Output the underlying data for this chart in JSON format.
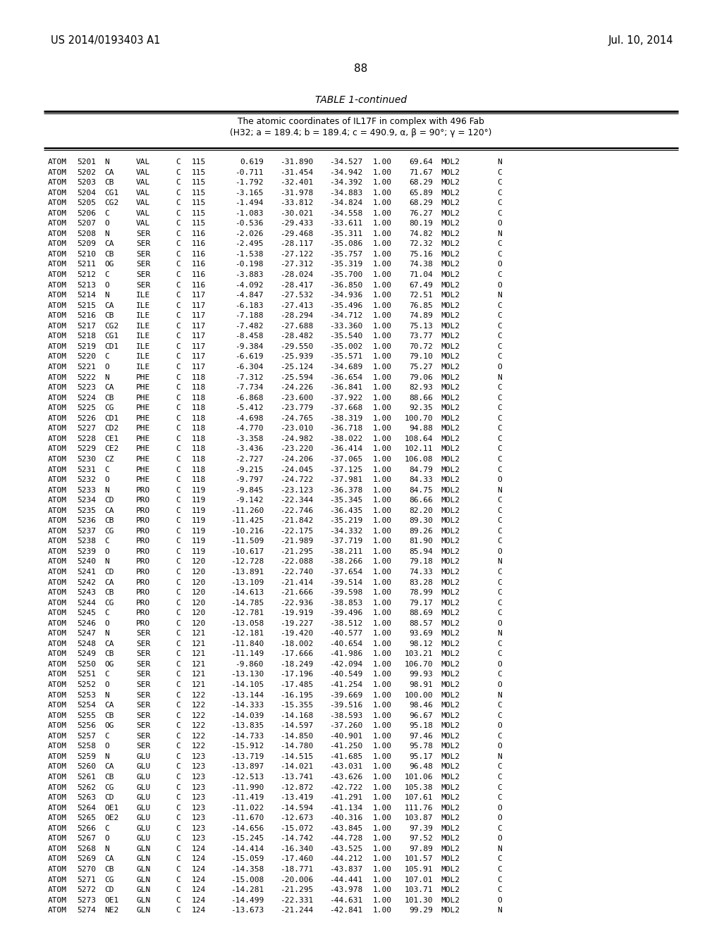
{
  "header_left": "US 2014/0193403 A1",
  "header_right": "Jul. 10, 2014",
  "page_number": "88",
  "table_title": "TABLE 1-continued",
  "table_subtitle1": "The atomic coordinates of IL17F in complex with 496 Fab",
  "table_subtitle2": "(H32; a = 189.4; b = 189.4; c = 490.9, α, β = 90°; γ = 120°)",
  "bg_color": "#ffffff",
  "text_color": "#000000",
  "rows": [
    [
      "ATOM",
      "5201",
      "N",
      "VAL",
      "C",
      "115",
      "0.619",
      "-31.890",
      "-34.527",
      "1.00",
      "69.64",
      "MOL2",
      "N"
    ],
    [
      "ATOM",
      "5202",
      "CA",
      "VAL",
      "C",
      "115",
      "-0.711",
      "-31.454",
      "-34.942",
      "1.00",
      "71.67",
      "MOL2",
      "C"
    ],
    [
      "ATOM",
      "5203",
      "CB",
      "VAL",
      "C",
      "115",
      "-1.792",
      "-32.401",
      "-34.392",
      "1.00",
      "68.29",
      "MOL2",
      "C"
    ],
    [
      "ATOM",
      "5204",
      "CG1",
      "VAL",
      "C",
      "115",
      "-3.165",
      "-31.978",
      "-34.883",
      "1.00",
      "65.89",
      "MOL2",
      "C"
    ],
    [
      "ATOM",
      "5205",
      "CG2",
      "VAL",
      "C",
      "115",
      "-1.494",
      "-33.812",
      "-34.824",
      "1.00",
      "68.29",
      "MOL2",
      "C"
    ],
    [
      "ATOM",
      "5206",
      "C",
      "VAL",
      "C",
      "115",
      "-1.083",
      "-30.021",
      "-34.558",
      "1.00",
      "76.27",
      "MOL2",
      "C"
    ],
    [
      "ATOM",
      "5207",
      "O",
      "VAL",
      "C",
      "115",
      "-0.536",
      "-29.433",
      "-33.611",
      "1.00",
      "80.19",
      "MOL2",
      "O"
    ],
    [
      "ATOM",
      "5208",
      "N",
      "SER",
      "C",
      "116",
      "-2.026",
      "-29.468",
      "-35.311",
      "1.00",
      "74.82",
      "MOL2",
      "N"
    ],
    [
      "ATOM",
      "5209",
      "CA",
      "SER",
      "C",
      "116",
      "-2.495",
      "-28.117",
      "-35.086",
      "1.00",
      "72.32",
      "MOL2",
      "C"
    ],
    [
      "ATOM",
      "5210",
      "CB",
      "SER",
      "C",
      "116",
      "-1.538",
      "-27.122",
      "-35.757",
      "1.00",
      "75.16",
      "MOL2",
      "C"
    ],
    [
      "ATOM",
      "5211",
      "OG",
      "SER",
      "C",
      "116",
      "-0.198",
      "-27.312",
      "-35.319",
      "1.00",
      "74.38",
      "MOL2",
      "O"
    ],
    [
      "ATOM",
      "5212",
      "C",
      "SER",
      "C",
      "116",
      "-3.883",
      "-28.024",
      "-35.700",
      "1.00",
      "71.04",
      "MOL2",
      "C"
    ],
    [
      "ATOM",
      "5213",
      "O",
      "SER",
      "C",
      "116",
      "-4.092",
      "-28.417",
      "-36.850",
      "1.00",
      "67.49",
      "MOL2",
      "O"
    ],
    [
      "ATOM",
      "5214",
      "N",
      "ILE",
      "C",
      "117",
      "-4.847",
      "-27.532",
      "-34.936",
      "1.00",
      "72.51",
      "MOL2",
      "N"
    ],
    [
      "ATOM",
      "5215",
      "CA",
      "ILE",
      "C",
      "117",
      "-6.183",
      "-27.413",
      "-35.496",
      "1.00",
      "76.85",
      "MOL2",
      "C"
    ],
    [
      "ATOM",
      "5216",
      "CB",
      "ILE",
      "C",
      "117",
      "-7.188",
      "-28.294",
      "-34.712",
      "1.00",
      "74.89",
      "MOL2",
      "C"
    ],
    [
      "ATOM",
      "5217",
      "CG2",
      "ILE",
      "C",
      "117",
      "-7.482",
      "-27.688",
      "-33.360",
      "1.00",
      "75.13",
      "MOL2",
      "C"
    ],
    [
      "ATOM",
      "5218",
      "CG1",
      "ILE",
      "C",
      "117",
      "-8.458",
      "-28.482",
      "-35.540",
      "1.00",
      "73.77",
      "MOL2",
      "C"
    ],
    [
      "ATOM",
      "5219",
      "CD1",
      "ILE",
      "C",
      "117",
      "-9.384",
      "-29.550",
      "-35.002",
      "1.00",
      "70.72",
      "MOL2",
      "C"
    ],
    [
      "ATOM",
      "5220",
      "C",
      "ILE",
      "C",
      "117",
      "-6.619",
      "-25.939",
      "-35.571",
      "1.00",
      "79.10",
      "MOL2",
      "C"
    ],
    [
      "ATOM",
      "5221",
      "O",
      "ILE",
      "C",
      "117",
      "-6.304",
      "-25.124",
      "-34.689",
      "1.00",
      "75.27",
      "MOL2",
      "O"
    ],
    [
      "ATOM",
      "5222",
      "N",
      "PHE",
      "C",
      "118",
      "-7.312",
      "-25.594",
      "-36.654",
      "1.00",
      "79.06",
      "MOL2",
      "N"
    ],
    [
      "ATOM",
      "5223",
      "CA",
      "PHE",
      "C",
      "118",
      "-7.734",
      "-24.226",
      "-36.841",
      "1.00",
      "82.93",
      "MOL2",
      "C"
    ],
    [
      "ATOM",
      "5224",
      "CB",
      "PHE",
      "C",
      "118",
      "-6.868",
      "-23.600",
      "-37.922",
      "1.00",
      "88.66",
      "MOL2",
      "C"
    ],
    [
      "ATOM",
      "5225",
      "CG",
      "PHE",
      "C",
      "118",
      "-5.412",
      "-23.779",
      "-37.668",
      "1.00",
      "92.35",
      "MOL2",
      "C"
    ],
    [
      "ATOM",
      "5226",
      "CD1",
      "PHE",
      "C",
      "118",
      "-4.698",
      "-24.765",
      "-38.319",
      "1.00",
      "100.70",
      "MOL2",
      "C"
    ],
    [
      "ATOM",
      "5227",
      "CD2",
      "PHE",
      "C",
      "118",
      "-4.770",
      "-23.010",
      "-36.718",
      "1.00",
      "94.88",
      "MOL2",
      "C"
    ],
    [
      "ATOM",
      "5228",
      "CE1",
      "PHE",
      "C",
      "118",
      "-3.358",
      "-24.982",
      "-38.022",
      "1.00",
      "108.64",
      "MOL2",
      "C"
    ],
    [
      "ATOM",
      "5229",
      "CE2",
      "PHE",
      "C",
      "118",
      "-3.436",
      "-23.220",
      "-36.414",
      "1.00",
      "102.11",
      "MOL2",
      "C"
    ],
    [
      "ATOM",
      "5230",
      "CZ",
      "PHE",
      "C",
      "118",
      "-2.727",
      "-24.206",
      "-37.065",
      "1.00",
      "106.08",
      "MOL2",
      "C"
    ],
    [
      "ATOM",
      "5231",
      "C",
      "PHE",
      "C",
      "118",
      "-9.215",
      "-24.045",
      "-37.125",
      "1.00",
      "84.79",
      "MOL2",
      "C"
    ],
    [
      "ATOM",
      "5232",
      "O",
      "PHE",
      "C",
      "118",
      "-9.797",
      "-24.722",
      "-37.981",
      "1.00",
      "84.33",
      "MOL2",
      "O"
    ],
    [
      "ATOM",
      "5233",
      "N",
      "PRO",
      "C",
      "119",
      "-9.845",
      "-23.123",
      "-36.378",
      "1.00",
      "84.75",
      "MOL2",
      "N"
    ],
    [
      "ATOM",
      "5234",
      "CD",
      "PRO",
      "C",
      "119",
      "-9.142",
      "-22.344",
      "-35.345",
      "1.00",
      "86.66",
      "MOL2",
      "C"
    ],
    [
      "ATOM",
      "5235",
      "CA",
      "PRO",
      "C",
      "119",
      "-11.260",
      "-22.746",
      "-36.435",
      "1.00",
      "82.20",
      "MOL2",
      "C"
    ],
    [
      "ATOM",
      "5236",
      "CB",
      "PRO",
      "C",
      "119",
      "-11.425",
      "-21.842",
      "-35.219",
      "1.00",
      "89.30",
      "MOL2",
      "C"
    ],
    [
      "ATOM",
      "5237",
      "CG",
      "PRO",
      "C",
      "119",
      "-10.216",
      "-22.175",
      "-34.332",
      "1.00",
      "89.26",
      "MOL2",
      "C"
    ],
    [
      "ATOM",
      "5238",
      "C",
      "PRO",
      "C",
      "119",
      "-11.509",
      "-21.989",
      "-37.719",
      "1.00",
      "81.90",
      "MOL2",
      "C"
    ],
    [
      "ATOM",
      "5239",
      "O",
      "PRO",
      "C",
      "119",
      "-10.617",
      "-21.295",
      "-38.211",
      "1.00",
      "85.94",
      "MOL2",
      "O"
    ],
    [
      "ATOM",
      "5240",
      "N",
      "PRO",
      "C",
      "120",
      "-12.728",
      "-22.088",
      "-38.266",
      "1.00",
      "79.18",
      "MOL2",
      "N"
    ],
    [
      "ATOM",
      "5241",
      "CD",
      "PRO",
      "C",
      "120",
      "-13.891",
      "-22.740",
      "-37.654",
      "1.00",
      "74.33",
      "MOL2",
      "C"
    ],
    [
      "ATOM",
      "5242",
      "CA",
      "PRO",
      "C",
      "120",
      "-13.109",
      "-21.414",
      "-39.514",
      "1.00",
      "83.28",
      "MOL2",
      "C"
    ],
    [
      "ATOM",
      "5243",
      "CB",
      "PRO",
      "C",
      "120",
      "-14.613",
      "-21.666",
      "-39.598",
      "1.00",
      "78.99",
      "MOL2",
      "C"
    ],
    [
      "ATOM",
      "5244",
      "CG",
      "PRO",
      "C",
      "120",
      "-14.785",
      "-22.936",
      "-38.853",
      "1.00",
      "79.17",
      "MOL2",
      "C"
    ],
    [
      "ATOM",
      "5245",
      "C",
      "PRO",
      "C",
      "120",
      "-12.781",
      "-19.919",
      "-39.496",
      "1.00",
      "88.69",
      "MOL2",
      "C"
    ],
    [
      "ATOM",
      "5246",
      "O",
      "PRO",
      "C",
      "120",
      "-13.058",
      "-19.227",
      "-38.512",
      "1.00",
      "88.57",
      "MOL2",
      "O"
    ],
    [
      "ATOM",
      "5247",
      "N",
      "SER",
      "C",
      "121",
      "-12.181",
      "-19.420",
      "-40.577",
      "1.00",
      "93.69",
      "MOL2",
      "N"
    ],
    [
      "ATOM",
      "5248",
      "CA",
      "SER",
      "C",
      "121",
      "-11.840",
      "-18.002",
      "-40.654",
      "1.00",
      "98.12",
      "MOL2",
      "C"
    ],
    [
      "ATOM",
      "5249",
      "CB",
      "SER",
      "C",
      "121",
      "-11.149",
      "-17.666",
      "-41.986",
      "1.00",
      "103.21",
      "MOL2",
      "C"
    ],
    [
      "ATOM",
      "5250",
      "OG",
      "SER",
      "C",
      "121",
      "-9.860",
      "-18.249",
      "-42.094",
      "1.00",
      "106.70",
      "MOL2",
      "O"
    ],
    [
      "ATOM",
      "5251",
      "C",
      "SER",
      "C",
      "121",
      "-13.130",
      "-17.196",
      "-40.549",
      "1.00",
      "99.93",
      "MOL2",
      "C"
    ],
    [
      "ATOM",
      "5252",
      "O",
      "SER",
      "C",
      "121",
      "-14.105",
      "-17.485",
      "-41.254",
      "1.00",
      "98.91",
      "MOL2",
      "O"
    ],
    [
      "ATOM",
      "5253",
      "N",
      "SER",
      "C",
      "122",
      "-13.144",
      "-16.195",
      "-39.669",
      "1.00",
      "100.00",
      "MOL2",
      "N"
    ],
    [
      "ATOM",
      "5254",
      "CA",
      "SER",
      "C",
      "122",
      "-14.333",
      "-15.355",
      "-39.516",
      "1.00",
      "98.46",
      "MOL2",
      "C"
    ],
    [
      "ATOM",
      "5255",
      "CB",
      "SER",
      "C",
      "122",
      "-14.039",
      "-14.168",
      "-38.593",
      "1.00",
      "96.67",
      "MOL2",
      "C"
    ],
    [
      "ATOM",
      "5256",
      "OG",
      "SER",
      "C",
      "122",
      "-13.835",
      "-14.597",
      "-37.260",
      "1.00",
      "95.18",
      "MOL2",
      "O"
    ],
    [
      "ATOM",
      "5257",
      "C",
      "SER",
      "C",
      "122",
      "-14.733",
      "-14.850",
      "-40.901",
      "1.00",
      "97.46",
      "MOL2",
      "C"
    ],
    [
      "ATOM",
      "5258",
      "O",
      "SER",
      "C",
      "122",
      "-15.912",
      "-14.780",
      "-41.250",
      "1.00",
      "95.78",
      "MOL2",
      "O"
    ],
    [
      "ATOM",
      "5259",
      "N",
      "GLU",
      "C",
      "123",
      "-13.719",
      "-14.515",
      "-41.685",
      "1.00",
      "95.17",
      "MOL2",
      "N"
    ],
    [
      "ATOM",
      "5260",
      "CA",
      "GLU",
      "C",
      "123",
      "-13.897",
      "-14.021",
      "-43.031",
      "1.00",
      "96.48",
      "MOL2",
      "C"
    ],
    [
      "ATOM",
      "5261",
      "CB",
      "GLU",
      "C",
      "123",
      "-12.513",
      "-13.741",
      "-43.626",
      "1.00",
      "101.06",
      "MOL2",
      "C"
    ],
    [
      "ATOM",
      "5262",
      "CG",
      "GLU",
      "C",
      "123",
      "-11.990",
      "-12.872",
      "-42.722",
      "1.00",
      "105.38",
      "MOL2",
      "C"
    ],
    [
      "ATOM",
      "5263",
      "CD",
      "GLU",
      "C",
      "123",
      "-11.419",
      "-13.419",
      "-41.291",
      "1.00",
      "107.61",
      "MOL2",
      "C"
    ],
    [
      "ATOM",
      "5264",
      "OE1",
      "GLU",
      "C",
      "123",
      "-11.022",
      "-14.594",
      "-41.134",
      "1.00",
      "111.76",
      "MOL2",
      "O"
    ],
    [
      "ATOM",
      "5265",
      "OE2",
      "GLU",
      "C",
      "123",
      "-11.670",
      "-12.673",
      "-40.316",
      "1.00",
      "103.87",
      "MOL2",
      "O"
    ],
    [
      "ATOM",
      "5266",
      "C",
      "GLU",
      "C",
      "123",
      "-14.656",
      "-15.072",
      "-43.845",
      "1.00",
      "97.39",
      "MOL2",
      "C"
    ],
    [
      "ATOM",
      "5267",
      "O",
      "GLU",
      "C",
      "123",
      "-15.245",
      "-14.742",
      "-44.728",
      "1.00",
      "97.52",
      "MOL2",
      "O"
    ],
    [
      "ATOM",
      "5268",
      "N",
      "GLN",
      "C",
      "124",
      "-14.414",
      "-16.340",
      "-43.525",
      "1.00",
      "97.89",
      "MOL2",
      "N"
    ],
    [
      "ATOM",
      "5269",
      "CA",
      "GLN",
      "C",
      "124",
      "-15.059",
      "-17.460",
      "-44.212",
      "1.00",
      "101.57",
      "MOL2",
      "C"
    ],
    [
      "ATOM",
      "5270",
      "CB",
      "GLN",
      "C",
      "124",
      "-14.358",
      "-18.771",
      "-43.837",
      "1.00",
      "105.91",
      "MOL2",
      "C"
    ],
    [
      "ATOM",
      "5271",
      "CG",
      "GLN",
      "C",
      "124",
      "-15.008",
      "-20.006",
      "-44.441",
      "1.00",
      "107.01",
      "MOL2",
      "C"
    ],
    [
      "ATOM",
      "5272",
      "CD",
      "GLN",
      "C",
      "124",
      "-14.281",
      "-21.295",
      "-43.978",
      "1.00",
      "103.71",
      "MOL2",
      "C"
    ],
    [
      "ATOM",
      "5273",
      "OE1",
      "GLN",
      "C",
      "124",
      "-14.499",
      "-22.331",
      "-44.631",
      "1.00",
      "101.30",
      "MOL2",
      "O"
    ],
    [
      "ATOM",
      "5274",
      "NE2",
      "GLN",
      "C",
      "124",
      "-13.673",
      "-21.244",
      "-42.841",
      "1.00",
      "99.29",
      "MOL2",
      "N"
    ]
  ]
}
